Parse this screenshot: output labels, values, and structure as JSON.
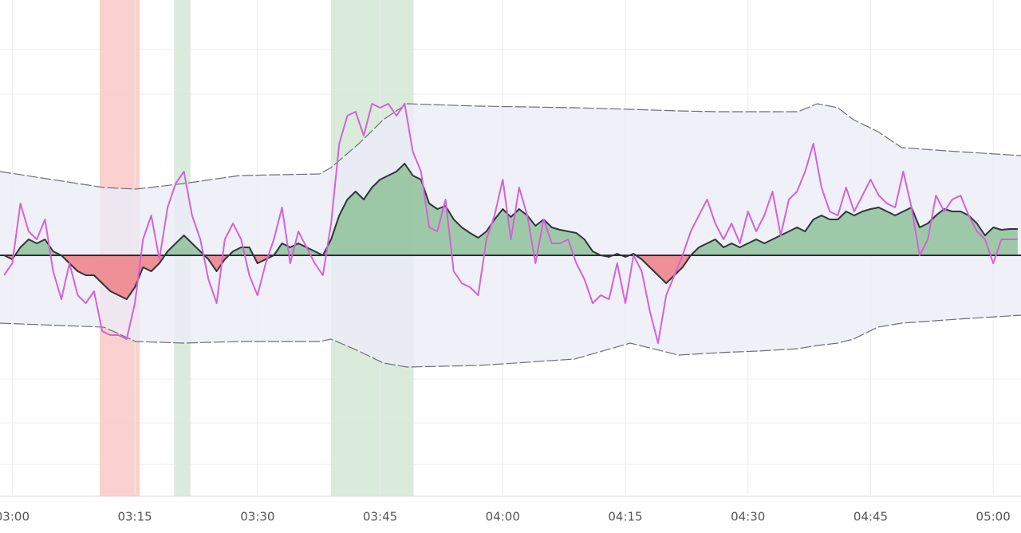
{
  "chart_data": {
    "type": "line",
    "xlim": [
      178.5,
      303.4
    ],
    "ylim": [
      -300,
      320
    ],
    "xticks": [
      {
        "value": 180,
        "label": "03:00"
      },
      {
        "value": 195,
        "label": "03:15"
      },
      {
        "value": 210,
        "label": "03:30"
      },
      {
        "value": 225,
        "label": "03:45"
      },
      {
        "value": 240,
        "label": "04:00"
      },
      {
        "value": 255,
        "label": "04:15"
      },
      {
        "value": 270,
        "label": "04:30"
      },
      {
        "value": 285,
        "label": "04:45"
      },
      {
        "value": 300,
        "label": "05:00"
      }
    ],
    "grid": true,
    "highlights": [
      {
        "start": 190.7,
        "end": 195.6,
        "color": "#f9c9c6"
      },
      {
        "start": 199.8,
        "end": 201.8,
        "color": "#d3e8d6"
      },
      {
        "start": 219.0,
        "end": 229.1,
        "color": "#d3e8d6"
      }
    ],
    "band": {
      "color": "#ececf8",
      "line_color": "#6e6e78",
      "x": [
        178.5,
        191.2,
        195.1,
        201.0,
        207.8,
        217.6,
        219.0,
        222.4,
        225.4,
        228.3,
        237.1,
        248.8,
        255.6,
        261.5,
        266.4,
        271.2,
        276.1,
        278.5,
        281.0,
        282.9,
        285.9,
        288.8,
        295.6,
        303.4
      ],
      "upper": [
        105,
        85,
        83,
        90,
        100,
        102,
        110,
        140,
        170,
        190,
        187,
        185,
        183,
        181,
        180,
        180,
        180,
        190,
        185,
        170,
        155,
        135,
        130,
        125
      ],
      "lower": [
        -85,
        -90,
        -108,
        -110,
        -108,
        -108,
        -105,
        -120,
        -135,
        -140,
        -138,
        -130,
        -110,
        -125,
        -122,
        -120,
        -117,
        -113,
        -110,
        -105,
        -90,
        -85,
        -80,
        -75
      ]
    },
    "x": [
      179,
      180,
      181,
      182,
      183,
      184,
      185,
      186,
      187,
      188,
      189,
      190,
      191,
      192,
      193,
      194,
      195,
      196,
      197,
      198,
      199,
      200,
      201,
      202,
      203,
      204,
      205,
      206,
      207,
      208,
      209,
      210,
      211,
      212,
      213,
      214,
      215,
      216,
      217,
      218,
      219,
      220,
      221,
      222,
      223,
      224,
      225,
      226,
      227,
      228,
      229,
      230,
      231,
      232,
      233,
      234,
      235,
      236,
      237,
      238,
      239,
      240,
      241,
      242,
      243,
      244,
      245,
      246,
      247,
      248,
      249,
      250,
      251,
      252,
      253,
      254,
      255,
      256,
      257,
      258,
      259,
      260,
      261,
      262,
      263,
      264,
      265,
      266,
      267,
      268,
      269,
      270,
      271,
      272,
      273,
      274,
      275,
      276,
      277,
      278,
      279,
      280,
      281,
      282,
      283,
      284,
      285,
      286,
      287,
      288,
      289,
      290,
      291,
      292,
      293,
      294,
      295,
      296,
      297,
      298,
      299,
      300,
      301,
      302,
      303
    ],
    "series": [
      {
        "color": "#d462da",
        "values": [
          -25,
          -10,
          65,
          30,
          20,
          45,
          -20,
          -55,
          -10,
          -50,
          -60,
          -45,
          -95,
          -100,
          -100,
          -105,
          -60,
          20,
          50,
          -5,
          60,
          90,
          105,
          50,
          20,
          -30,
          -60,
          20,
          40,
          20,
          -25,
          -50,
          -10,
          20,
          60,
          -10,
          30,
          10,
          -10,
          -25,
          40,
          140,
          175,
          180,
          150,
          190,
          185,
          190,
          175,
          190,
          130,
          105,
          35,
          30,
          70,
          -20,
          -35,
          -40,
          -50,
          20,
          50,
          95,
          20,
          85,
          50,
          -10,
          45,
          15,
          15,
          20,
          -10,
          -30,
          -60,
          -50,
          -55,
          -10,
          -60,
          0,
          -20,
          -70,
          -110,
          -50,
          -25,
          0,
          30,
          50,
          70,
          40,
          20,
          40,
          15,
          55,
          30,
          50,
          80,
          25,
          70,
          80,
          105,
          140,
          85,
          55,
          50,
          85,
          55,
          75,
          95,
          75,
          65,
          60,
          105,
          60,
          0,
          20,
          75,
          55,
          70,
          75,
          50,
          30,
          20,
          -10,
          20,
          20,
          20
        ]
      },
      {
        "color": "#30363c",
        "positive_color": "#8fc29a",
        "negative_color": "#ee7f86",
        "values": [
          0,
          -5,
          10,
          20,
          15,
          20,
          5,
          0,
          -10,
          -20,
          -25,
          -25,
          -35,
          -45,
          -50,
          -55,
          -40,
          -15,
          -20,
          -10,
          5,
          15,
          25,
          15,
          5,
          -5,
          -20,
          -5,
          5,
          10,
          10,
          -10,
          -5,
          0,
          15,
          10,
          15,
          10,
          5,
          0,
          20,
          50,
          70,
          80,
          70,
          85,
          95,
          100,
          105,
          115,
          100,
          95,
          65,
          58,
          62,
          45,
          35,
          28,
          22,
          30,
          45,
          58,
          48,
          58,
          50,
          37,
          45,
          35,
          32,
          30,
          28,
          20,
          5,
          0,
          -2,
          2,
          -2,
          2,
          -5,
          -15,
          -25,
          -35,
          -25,
          -15,
          0,
          10,
          15,
          20,
          10,
          15,
          10,
          15,
          20,
          15,
          20,
          25,
          30,
          35,
          30,
          45,
          50,
          45,
          45,
          55,
          50,
          55,
          58,
          60,
          55,
          50,
          55,
          60,
          35,
          40,
          50,
          58,
          55,
          55,
          50,
          40,
          25,
          35,
          32,
          33,
          33
        ]
      }
    ]
  }
}
